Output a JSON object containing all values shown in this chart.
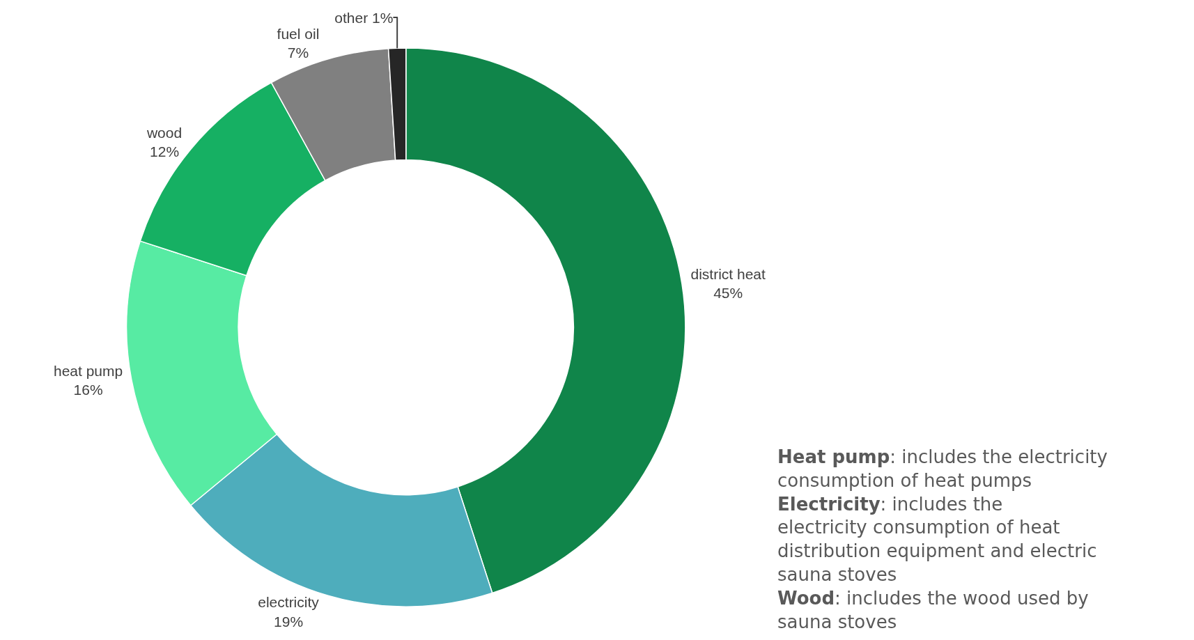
{
  "chart_data": {
    "type": "donut",
    "categories": [
      "district heat",
      "electricity",
      "heat pump",
      "wood",
      "fuel oil",
      "other"
    ],
    "values": [
      45,
      19,
      16,
      12,
      7,
      1
    ],
    "value_labels": [
      "45%",
      "19%",
      "16%",
      "12%",
      "7%",
      "1%"
    ],
    "colors": [
      "#10854a",
      "#4eadbc",
      "#57eba3",
      "#16b063",
      "#808080",
      "#262626"
    ],
    "legend": false,
    "annotations": [
      "Heat pump: includes the electricity consumption of heat pumps",
      "Electricity: includes the electricity consumption of heat distribution equipment and electric sauna stoves",
      "Wood: includes the wood used by sauna stoves"
    ]
  }
}
